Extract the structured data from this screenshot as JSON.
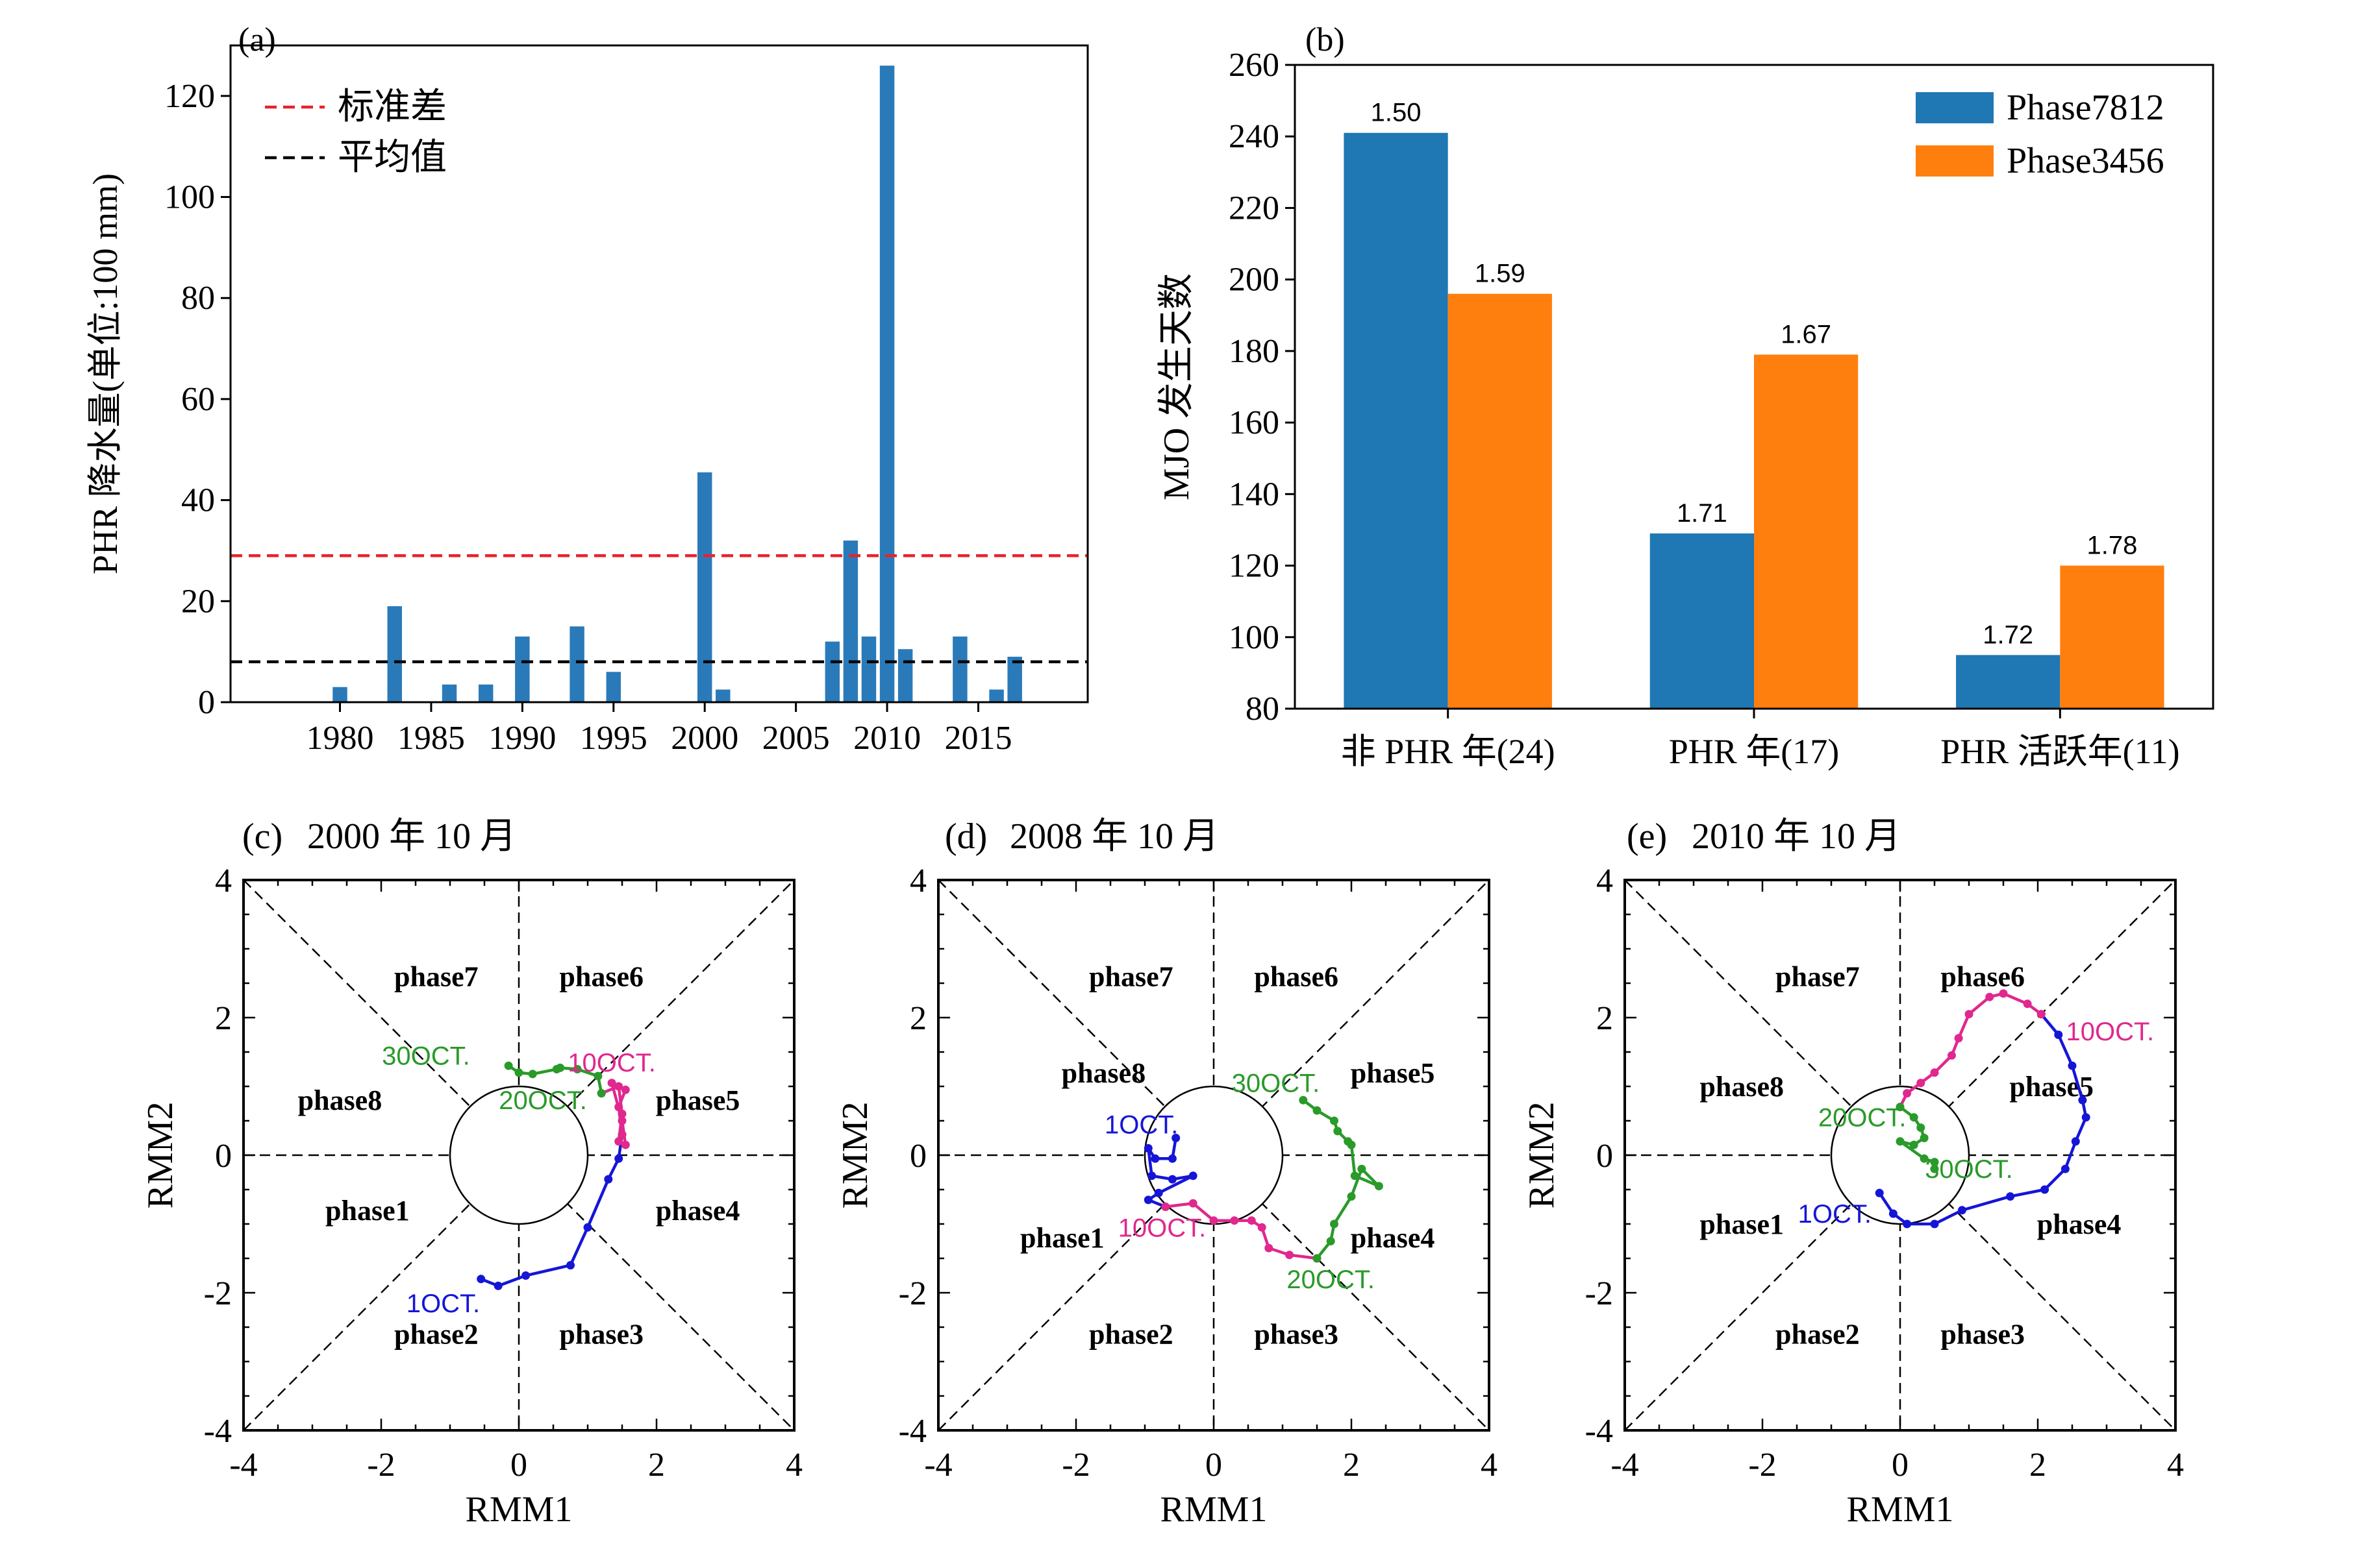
{
  "colors": {
    "bar_a": "#2a7ab9",
    "blue": "#1f77b4",
    "orange": "#ff7f0e",
    "std_line": "#e8222a",
    "mean_line": "#000000",
    "traj_blue": "#1515d8",
    "traj_magenta": "#e0288e",
    "traj_green": "#2a9a2a"
  },
  "chart_data": [
    {
      "panel": "(a)",
      "type": "bar",
      "ylabel": "PHR 降水量(单位:100 mm)",
      "xlim": [
        1974,
        2021
      ],
      "ylim": [
        0,
        130
      ],
      "x_ticks": [
        1980,
        1985,
        1990,
        1995,
        2000,
        2005,
        2010,
        2015
      ],
      "y_ticks": [
        0,
        20,
        40,
        60,
        80,
        100,
        120
      ],
      "x": [
        1980,
        1983,
        1986,
        1988,
        1990,
        1993,
        1995,
        2000,
        2001,
        2007,
        2008,
        2009,
        2010,
        2011,
        2014,
        2016,
        2017
      ],
      "values": [
        3,
        19,
        3.5,
        3.5,
        13,
        15,
        6,
        45.5,
        2.5,
        12,
        32,
        13,
        126,
        10.5,
        13,
        2.5,
        9
      ],
      "hlines": [
        {
          "name": "标准差",
          "y": 29,
          "color": "#e8222a"
        },
        {
          "name": "平均值",
          "y": 8,
          "color": "#000000"
        }
      ],
      "legend": [
        "标准差",
        "平均值"
      ]
    },
    {
      "panel": "(b)",
      "type": "bar",
      "ylabel": "MJO 发生天数",
      "ylim": [
        80,
        260
      ],
      "y_ticks": [
        80,
        100,
        120,
        140,
        160,
        180,
        200,
        220,
        240,
        260
      ],
      "categories": [
        "非 PHR 年(24)",
        "PHR 年(17)",
        "PHR 活跃年(11)"
      ],
      "series": [
        {
          "name": "Phase7812",
          "values": [
            241,
            129,
            95
          ],
          "labels": [
            "1.50",
            "1.71",
            "1.72"
          ]
        },
        {
          "name": "Phase3456",
          "values": [
            196,
            179,
            120
          ],
          "labels": [
            "1.59",
            "1.67",
            "1.78"
          ]
        }
      ],
      "legend_position": "top-right"
    },
    {
      "panel": "(c)",
      "type": "line",
      "title": "2000 年 10 月",
      "xlabel": "RMM1",
      "ylabel": "RMM2",
      "xlim": [
        -4,
        4
      ],
      "ylim": [
        -4,
        4
      ],
      "ticks": [
        -4,
        -2,
        0,
        2,
        4
      ],
      "phases": [
        {
          "label": "phase7",
          "x": -1.2,
          "y": 2.6
        },
        {
          "label": "phase6",
          "x": 1.2,
          "y": 2.6
        },
        {
          "label": "phase8",
          "x": -2.6,
          "y": 0.8
        },
        {
          "label": "phase5",
          "x": 2.6,
          "y": 0.8
        },
        {
          "label": "phase1",
          "x": -2.2,
          "y": -0.8
        },
        {
          "label": "phase4",
          "x": 2.6,
          "y": -0.8
        },
        {
          "label": "phase2",
          "x": -1.2,
          "y": -2.6
        },
        {
          "label": "phase3",
          "x": 1.2,
          "y": -2.6
        }
      ],
      "series": [
        {
          "color": "#1515d8",
          "points": [
            [
              -0.55,
              -1.8
            ],
            [
              -0.3,
              -1.9
            ],
            [
              0.1,
              -1.75
            ],
            [
              0.75,
              -1.6
            ],
            [
              1.0,
              -1.05
            ],
            [
              1.3,
              -0.35
            ],
            [
              1.45,
              -0.05
            ],
            [
              1.5,
              0.3
            ]
          ]
        },
        {
          "color": "#e0288e",
          "points": [
            [
              1.5,
              0.3
            ],
            [
              1.45,
              0.7
            ],
            [
              1.55,
              0.95
            ],
            [
              1.35,
              1.05
            ],
            [
              1.5,
              0.5
            ],
            [
              1.55,
              0.15
            ],
            [
              1.45,
              0.2
            ],
            [
              1.5,
              0.6
            ],
            [
              1.45,
              1.0
            ],
            [
              1.2,
              0.9
            ]
          ]
        },
        {
          "color": "#2a9a2a",
          "points": [
            [
              1.2,
              0.9
            ],
            [
              1.15,
              1.15
            ],
            [
              0.85,
              1.25
            ],
            [
              0.6,
              1.27
            ],
            [
              0.55,
              1.25
            ],
            [
              0.2,
              1.18
            ],
            [
              0.0,
              1.2
            ],
            [
              -0.15,
              1.3
            ]
          ]
        }
      ],
      "annotations": [
        {
          "text": "1OCT.",
          "x": -1.1,
          "y": -2.15,
          "color": "#1515d8"
        },
        {
          "text": "10OCT.",
          "x": 1.35,
          "y": 1.35,
          "color": "#e0288e"
        },
        {
          "text": "20OCT.",
          "x": 0.35,
          "y": 0.8,
          "color": "#2a9a2a"
        },
        {
          "text": "30OCT.",
          "x": -1.35,
          "y": 1.45,
          "color": "#2a9a2a"
        }
      ]
    },
    {
      "panel": "(d)",
      "type": "line",
      "title": "2008 年 10 月",
      "xlabel": "RMM1",
      "ylabel": "RMM2",
      "xlim": [
        -4,
        4
      ],
      "ylim": [
        -4,
        4
      ],
      "ticks": [
        -4,
        -2,
        0,
        2,
        4
      ],
      "phases": [
        {
          "label": "phase7",
          "x": -1.2,
          "y": 2.6
        },
        {
          "label": "phase6",
          "x": 1.2,
          "y": 2.6
        },
        {
          "label": "phase8",
          "x": -1.6,
          "y": 1.2
        },
        {
          "label": "phase5",
          "x": 2.6,
          "y": 1.2
        },
        {
          "label": "phase1",
          "x": -2.2,
          "y": -1.2
        },
        {
          "label": "phase4",
          "x": 2.6,
          "y": -1.2
        },
        {
          "label": "phase2",
          "x": -1.2,
          "y": -2.6
        },
        {
          "label": "phase3",
          "x": 1.2,
          "y": -2.6
        }
      ],
      "series": [
        {
          "color": "#1515d8",
          "points": [
            [
              -0.55,
              0.25
            ],
            [
              -0.6,
              -0.05
            ],
            [
              -0.85,
              -0.05
            ],
            [
              -0.95,
              0.1
            ],
            [
              -0.9,
              -0.3
            ],
            [
              -0.6,
              -0.35
            ],
            [
              -0.3,
              -0.3
            ],
            [
              -0.8,
              -0.55
            ],
            [
              -0.95,
              -0.65
            ],
            [
              -0.7,
              -0.75
            ]
          ]
        },
        {
          "color": "#e0288e",
          "points": [
            [
              -0.7,
              -0.75
            ],
            [
              -0.3,
              -0.7
            ],
            [
              0.0,
              -0.95
            ],
            [
              0.3,
              -0.95
            ],
            [
              0.55,
              -0.95
            ],
            [
              0.7,
              -1.05
            ],
            [
              0.8,
              -1.35
            ],
            [
              1.1,
              -1.45
            ],
            [
              1.5,
              -1.5
            ]
          ]
        },
        {
          "color": "#2a9a2a",
          "points": [
            [
              1.5,
              -1.5
            ],
            [
              1.7,
              -1.25
            ],
            [
              1.75,
              -1.0
            ],
            [
              2.0,
              -0.6
            ],
            [
              2.15,
              -0.2
            ],
            [
              2.4,
              -0.45
            ],
            [
              2.05,
              -0.3
            ],
            [
              2.0,
              0.15
            ],
            [
              1.95,
              0.2
            ],
            [
              1.8,
              0.35
            ],
            [
              1.75,
              0.5
            ],
            [
              1.5,
              0.65
            ],
            [
              1.3,
              0.8
            ]
          ]
        }
      ],
      "annotations": [
        {
          "text": "1OCT.",
          "x": -1.05,
          "y": 0.45,
          "color": "#1515d8"
        },
        {
          "text": "10OCT.",
          "x": -0.75,
          "y": -1.05,
          "color": "#e0288e"
        },
        {
          "text": "20OCT.",
          "x": 1.7,
          "y": -1.8,
          "color": "#2a9a2a"
        },
        {
          "text": "30OCT.",
          "x": 0.9,
          "y": 1.05,
          "color": "#2a9a2a"
        }
      ]
    },
    {
      "panel": "(e)",
      "type": "line",
      "title": "2010 年 10 月",
      "xlabel": "RMM1",
      "ylabel": "RMM2",
      "xlim": [
        -4,
        4
      ],
      "ylim": [
        -4,
        4
      ],
      "ticks": [
        -4,
        -2,
        0,
        2,
        4
      ],
      "phases": [
        {
          "label": "phase7",
          "x": -1.2,
          "y": 2.6
        },
        {
          "label": "phase6",
          "x": 1.2,
          "y": 2.6
        },
        {
          "label": "phase8",
          "x": -2.3,
          "y": 1.0
        },
        {
          "label": "phase5",
          "x": 2.2,
          "y": 1.0
        },
        {
          "label": "phase1",
          "x": -2.3,
          "y": -1.0
        },
        {
          "label": "phase4",
          "x": 2.6,
          "y": -1.0
        },
        {
          "label": "phase2",
          "x": -1.2,
          "y": -2.6
        },
        {
          "label": "phase3",
          "x": 1.2,
          "y": -2.6
        }
      ],
      "series": [
        {
          "color": "#1515d8",
          "points": [
            [
              -0.3,
              -0.55
            ],
            [
              -0.1,
              -0.85
            ],
            [
              0.1,
              -1.0
            ],
            [
              0.5,
              -1.0
            ],
            [
              0.9,
              -0.8
            ],
            [
              1.6,
              -0.6
            ],
            [
              2.1,
              -0.5
            ],
            [
              2.4,
              -0.2
            ],
            [
              2.55,
              0.2
            ],
            [
              2.7,
              0.55
            ],
            [
              2.65,
              0.8
            ],
            [
              2.5,
              1.3
            ],
            [
              2.3,
              1.75
            ],
            [
              2.05,
              2.05
            ]
          ]
        },
        {
          "color": "#e0288e",
          "points": [
            [
              2.05,
              2.05
            ],
            [
              1.85,
              2.2
            ],
            [
              1.5,
              2.35
            ],
            [
              1.3,
              2.3
            ],
            [
              1.0,
              2.05
            ],
            [
              0.85,
              1.7
            ],
            [
              0.75,
              1.45
            ],
            [
              0.5,
              1.2
            ],
            [
              0.3,
              1.05
            ],
            [
              0.1,
              0.9
            ],
            [
              0.0,
              0.7
            ]
          ]
        },
        {
          "color": "#2a9a2a",
          "points": [
            [
              0.0,
              0.7
            ],
            [
              0.2,
              0.55
            ],
            [
              0.3,
              0.4
            ],
            [
              0.35,
              0.25
            ],
            [
              0.2,
              0.15
            ],
            [
              0.0,
              0.2
            ],
            [
              0.35,
              -0.05
            ],
            [
              0.5,
              -0.1
            ],
            [
              0.5,
              -0.2
            ]
          ]
        }
      ],
      "annotations": [
        {
          "text": "1OCT.",
          "x": -0.95,
          "y": -0.85,
          "color": "#1515d8"
        },
        {
          "text": "10OCT.",
          "x": 3.05,
          "y": 1.8,
          "color": "#e0288e"
        },
        {
          "text": "20OCT.",
          "x": -0.55,
          "y": 0.55,
          "color": "#2a9a2a"
        },
        {
          "text": "30OCT.",
          "x": 1.0,
          "y": -0.2,
          "color": "#2a9a2a"
        }
      ]
    }
  ]
}
